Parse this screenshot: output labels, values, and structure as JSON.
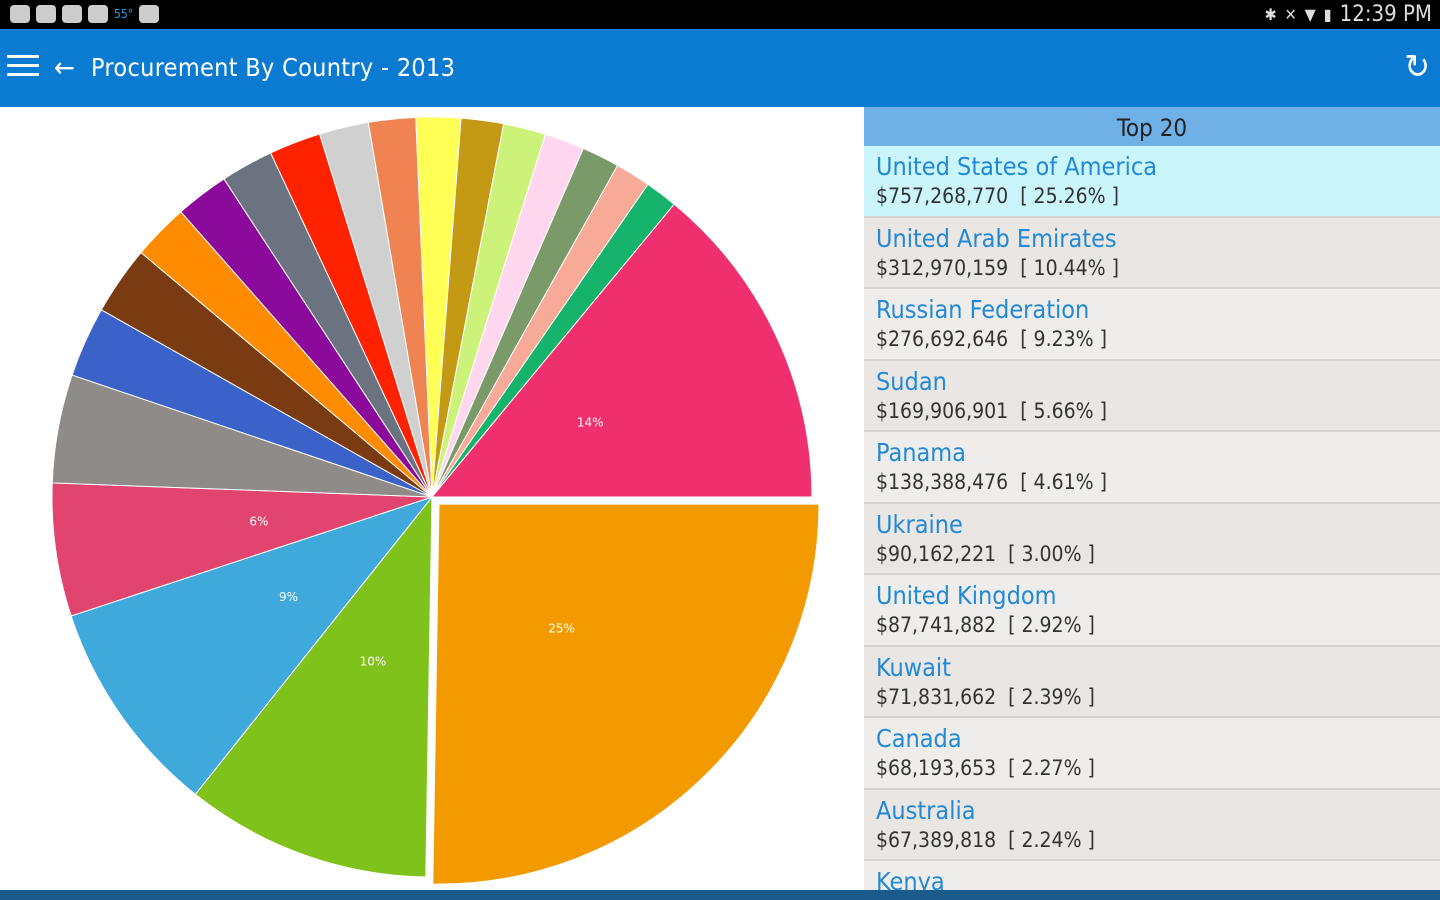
{
  "status_bar": {
    "temperature": "55°",
    "time": "12:39 PM"
  },
  "app_bar": {
    "title": "Procurement By Country - 2013"
  },
  "panel": {
    "header": "Top 20",
    "items": [
      {
        "name": "United States of America",
        "amount": "$757,268,770",
        "percent": "[ 25.26% ]"
      },
      {
        "name": "United Arab Emirates",
        "amount": "$312,970,159",
        "percent": "[ 10.44% ]"
      },
      {
        "name": "Russian Federation",
        "amount": "$276,692,646",
        "percent": "[ 9.23% ]"
      },
      {
        "name": "Sudan",
        "amount": "$169,906,901",
        "percent": "[ 5.66% ]"
      },
      {
        "name": "Panama",
        "amount": "$138,388,476",
        "percent": "[ 4.61% ]"
      },
      {
        "name": "Ukraine",
        "amount": "$90,162,221",
        "percent": "[ 3.00% ]"
      },
      {
        "name": "United Kingdom",
        "amount": "$87,741,882",
        "percent": "[ 2.92% ]"
      },
      {
        "name": "Kuwait",
        "amount": "$71,831,662",
        "percent": "[ 2.39% ]"
      },
      {
        "name": "Canada",
        "amount": "$68,193,653",
        "percent": "[ 2.27% ]"
      },
      {
        "name": "Australia",
        "amount": "$67,389,818",
        "percent": "[ 2.24% ]"
      },
      {
        "name": "Kenya",
        "amount": "",
        "percent": ""
      }
    ]
  },
  "chart_data": {
    "type": "pie",
    "start": "3 o'clock, clockwise",
    "exploded_index": 0,
    "slices": [
      {
        "value": 25.26,
        "label": "25%",
        "color": "#f39a00"
      },
      {
        "value": 10.44,
        "label": "10%",
        "color": "#80c21c"
      },
      {
        "value": 9.23,
        "label": "9%",
        "color": "#3fa9dc"
      },
      {
        "value": 5.66,
        "label": "6%",
        "color": "#e0446f"
      },
      {
        "value": 4.61,
        "label": "",
        "color": "#8e8b89"
      },
      {
        "value": 3.0,
        "label": "",
        "color": "#3a62c8"
      },
      {
        "value": 2.92,
        "label": "",
        "color": "#7a3a12"
      },
      {
        "value": 2.39,
        "label": "",
        "color": "#ff8c00"
      },
      {
        "value": 2.27,
        "label": "",
        "color": "#8b0a9b"
      },
      {
        "value": 2.24,
        "label": "",
        "color": "#6b7280"
      },
      {
        "value": 2.2,
        "label": "",
        "color": "#ff2200"
      },
      {
        "value": 2.1,
        "label": "",
        "color": "#d0d0d0"
      },
      {
        "value": 2.0,
        "label": "",
        "color": "#ef8452"
      },
      {
        "value": 1.9,
        "label": "",
        "color": "#ffff55"
      },
      {
        "value": 1.8,
        "label": "",
        "color": "#c49a14"
      },
      {
        "value": 1.8,
        "label": "",
        "color": "#ccf27a"
      },
      {
        "value": 1.7,
        "label": "",
        "color": "#ffd8ef"
      },
      {
        "value": 1.6,
        "label": "",
        "color": "#7a9a6a"
      },
      {
        "value": 1.5,
        "label": "",
        "color": "#f8aa98"
      },
      {
        "value": 1.38,
        "label": "",
        "color": "#16b36c"
      },
      {
        "value": 14.0,
        "label": "14%",
        "color": "#f0306e"
      }
    ]
  }
}
